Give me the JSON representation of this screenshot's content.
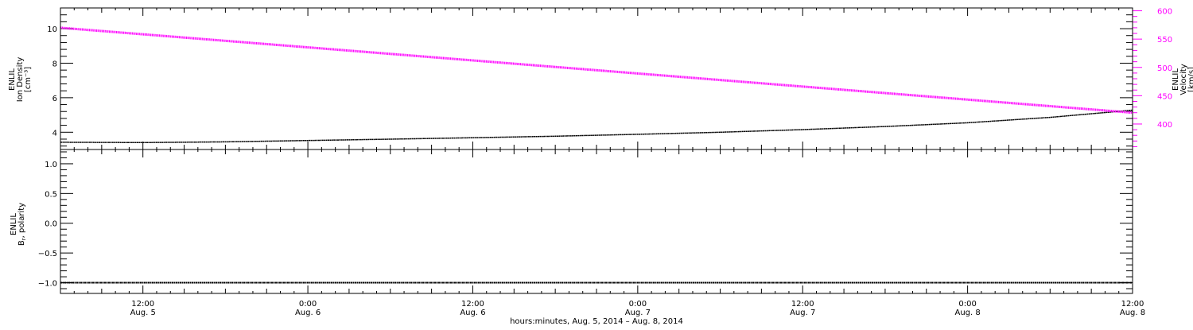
{
  "colors": {
    "density": "#000000",
    "velocity": "#ff00ff",
    "polarity": "#000000",
    "frame": "#000000"
  },
  "chart_data": [
    {
      "type": "line",
      "panel": "top",
      "y_axis_left": {
        "label_lines": [
          "ENLIL",
          "Ion Density",
          "[cm⁻³]"
        ],
        "ticks": [
          4,
          6,
          8,
          10
        ],
        "tick_labels": [
          "4",
          "6",
          "8",
          "10"
        ],
        "ylim": [
          3.0,
          11.2
        ]
      },
      "y_axis_right": {
        "label_lines": [
          "ENLIL",
          "Velocity",
          "[km/s]"
        ],
        "ticks": [
          400,
          450,
          500,
          550,
          600
        ],
        "tick_labels": [
          "400",
          "450",
          "500",
          "550",
          "600"
        ],
        "ylim": [
          355,
          605
        ],
        "color": "#ff00ff"
      },
      "series": [
        {
          "axis": "left",
          "color": "#000000",
          "x_hours": [
            0,
            6,
            12,
            18,
            24,
            30,
            36,
            42,
            48,
            54,
            60,
            66,
            72,
            78
          ],
          "values": [
            3.42,
            3.4,
            3.44,
            3.52,
            3.6,
            3.68,
            3.77,
            3.88,
            4.0,
            4.15,
            4.33,
            4.55,
            4.86,
            5.28
          ]
        },
        {
          "axis": "right",
          "color": "#ff00ff",
          "x_hours": [
            0,
            78
          ],
          "values": [
            570,
            420
          ]
        }
      ]
    },
    {
      "type": "line",
      "panel": "bottom",
      "y_axis_left": {
        "label_lines": [
          "ENLIL",
          "B",
          "polarity"
        ],
        "label_subscript": "r",
        "ticks": [
          -1.0,
          -0.5,
          0.0,
          0.5,
          1.0
        ],
        "tick_labels": [
          "−1.0",
          "−0.5",
          "0.0",
          "0.5",
          "1.0"
        ],
        "ylim": [
          -1.18,
          1.24
        ]
      },
      "series": [
        {
          "axis": "left",
          "color": "#000000",
          "x_hours": [
            0,
            78
          ],
          "values": [
            -1.0,
            -1.0
          ]
        }
      ]
    }
  ],
  "x_axis": {
    "start": "Aug. 5, 2014 06:00",
    "range_hours": [
      0,
      78
    ],
    "major_ticks_hours": [
      6,
      18,
      30,
      42,
      54,
      66,
      78
    ],
    "tick_labels": [
      {
        "time": "12:00",
        "date": "Aug. 5"
      },
      {
        "time": "0:00",
        "date": "Aug. 6"
      },
      {
        "time": "12:00",
        "date": "Aug. 6"
      },
      {
        "time": "0:00",
        "date": "Aug. 7"
      },
      {
        "time": "12:00",
        "date": "Aug. 7"
      },
      {
        "time": "0:00",
        "date": "Aug. 8"
      },
      {
        "time": "12:00",
        "date": "Aug. 8"
      }
    ],
    "title": "hours:minutes, Aug.  5, 2014 – Aug.  8, 2014"
  }
}
